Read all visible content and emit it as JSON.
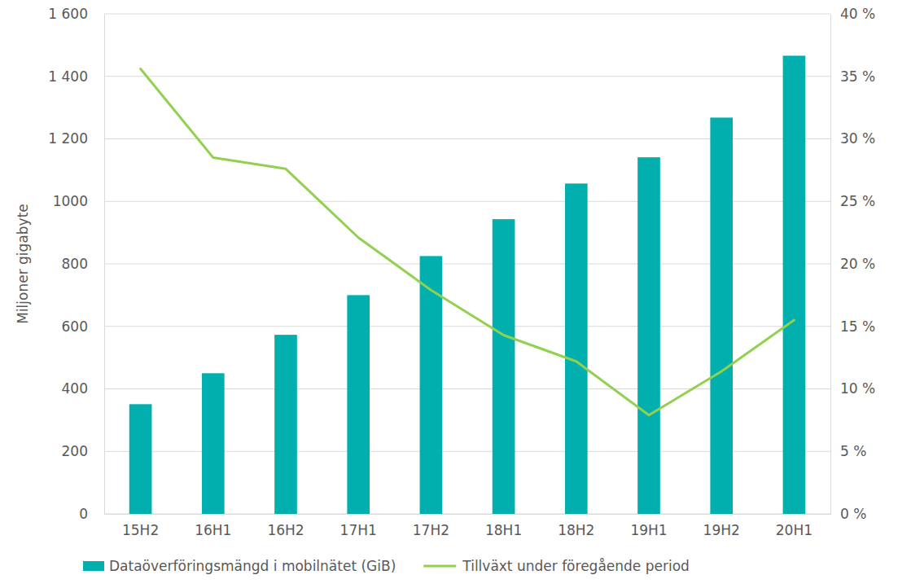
{
  "chart_data": {
    "type": "bar",
    "y_label": "Miljoner gigabyte",
    "categories": [
      "15H2",
      "16H1",
      "16H2",
      "17H1",
      "17H2",
      "18H1",
      "18H2",
      "19H1",
      "19H2",
      "20H1"
    ],
    "series": [
      {
        "name": "Dataöverföringsmängd i mobilnätet (GiB)",
        "type": "bar",
        "color": "#00afae",
        "values": [
          351,
          450,
          573,
          700,
          825,
          943,
          1057,
          1141,
          1268,
          1466
        ]
      },
      {
        "name": "Tillväxt under föregående period",
        "type": "line",
        "axis": "y2",
        "color": "#92d050",
        "values": [
          35.6,
          28.5,
          27.6,
          22.1,
          17.9,
          14.3,
          12.2,
          7.9,
          11.4,
          15.5
        ]
      }
    ],
    "ylim": [
      0,
      1600
    ],
    "yticks": [
      0,
      200,
      400,
      600,
      800,
      1000,
      {
        "value": 1200,
        "label": "1 200"
      },
      {
        "value": 1400,
        "label": "1 400"
      },
      {
        "value": 1600,
        "label": "1 600"
      }
    ],
    "y2lim": [
      0,
      40
    ],
    "y2ticks": [
      {
        "value": 0,
        "label": "0 %"
      },
      {
        "value": 5,
        "label": "5 %"
      },
      {
        "value": 10,
        "label": "10 %"
      },
      {
        "value": 15,
        "label": "15 %"
      },
      {
        "value": 20,
        "label": "20 %"
      },
      {
        "value": 25,
        "label": "25 %"
      },
      {
        "value": 30,
        "label": "30 %"
      },
      {
        "value": 35,
        "label": "35 %"
      },
      {
        "value": 40,
        "label": "40 %"
      }
    ],
    "grid": true,
    "legend": "bottom"
  }
}
